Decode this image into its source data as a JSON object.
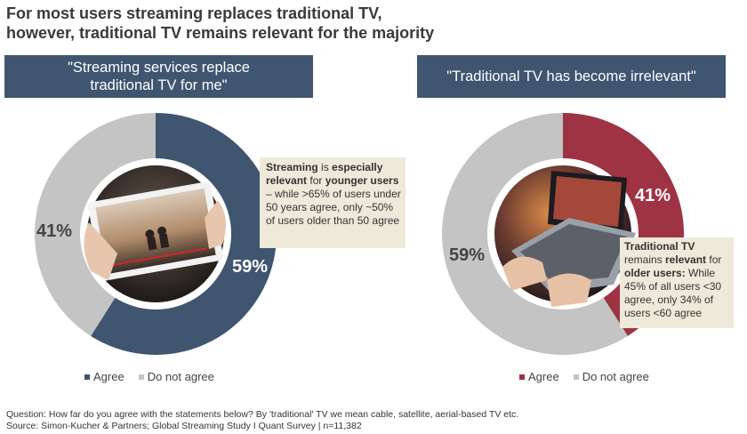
{
  "title": {
    "line1": "For most users streaming replaces traditional TV,",
    "line2": "however, traditional TV remains relevant for the majority"
  },
  "colors": {
    "banner": "#3f5570",
    "agree_left": "#3f5570",
    "agree_right": "#9e3344",
    "not_agree": "#c4c4c4",
    "callout_bg": "#efe9da"
  },
  "chart_data": [
    {
      "type": "pie",
      "title": "\"Streaming services replace traditional TV for me\"",
      "title_lines": [
        "\"Streaming services replace",
        "traditional TV for me\""
      ],
      "categories": [
        "Agree",
        "Do not agree"
      ],
      "values": [
        59,
        41
      ],
      "data_labels": [
        "59%",
        "41%"
      ],
      "colors": [
        "#3f5570",
        "#c4c4c4"
      ],
      "legend": "bottom",
      "annotation": [
        {
          "text": "Streaming",
          "bold": true
        },
        {
          "text": " is ",
          "bold": false
        },
        {
          "text": "especially relevant",
          "bold": true
        },
        {
          "text": " for ",
          "bold": false
        },
        {
          "text": "younger users",
          "bold": true
        },
        {
          "text": " – while >65% of users under 50 years agree, only ~50% of users older than 50 agree",
          "bold": false
        }
      ],
      "center_image": "tablet-video-icon"
    },
    {
      "type": "pie",
      "title": "\"Traditional TV has become irrelevant\"",
      "title_lines": [
        "\"Traditional TV has become irrelevant\""
      ],
      "categories": [
        "Agree",
        "Do not agree"
      ],
      "values": [
        41,
        59
      ],
      "data_labels": [
        "41%",
        "59%"
      ],
      "colors": [
        "#9e3344",
        "#c4c4c4"
      ],
      "legend": "bottom",
      "annotation": [
        {
          "text": "Traditional TV",
          "bold": true
        },
        {
          "text": " remains ",
          "bold": false
        },
        {
          "text": "relevant",
          "bold": true
        },
        {
          "text": " for ",
          "bold": false
        },
        {
          "text": "older users:",
          "bold": true
        },
        {
          "text": " While 45% of all users <30 agree, only 34% of users <60 agree",
          "bold": false
        }
      ],
      "center_image": "laptop-streaming-icon"
    }
  ],
  "footer": {
    "question": "Question: How far do you agree with the statements below? By 'traditional' TV we mean cable, satellite, aerial-based TV etc.",
    "source": "Source: Simon-Kucher & Partners; Global Streaming Study I Quant Survey  |  n=11,382"
  }
}
